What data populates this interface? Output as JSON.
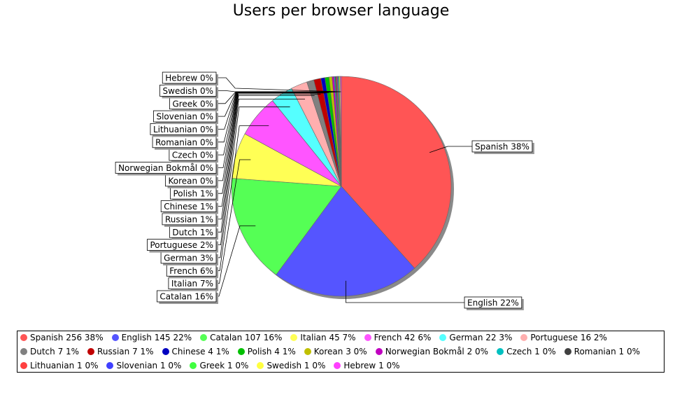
{
  "chart_data": {
    "type": "pie",
    "title": "Users per browser language",
    "slices": [
      {
        "name": "Spanish",
        "count": 256,
        "pct": 38,
        "color": "#ff5555",
        "label": "Spanish 38%",
        "legend": "Spanish 256 38%"
      },
      {
        "name": "English",
        "count": 145,
        "pct": 22,
        "color": "#5555ff",
        "label": "English 22%",
        "legend": "English 145 22%"
      },
      {
        "name": "Catalan",
        "count": 107,
        "pct": 16,
        "color": "#55ff55",
        "label": "Catalan 16%",
        "legend": "Catalan 107 16%"
      },
      {
        "name": "Italian",
        "count": 45,
        "pct": 7,
        "color": "#ffff55",
        "label": "Italian 7%",
        "legend": "Italian 45 7%"
      },
      {
        "name": "French",
        "count": 42,
        "pct": 6,
        "color": "#ff55ff",
        "label": "French 6%",
        "legend": "French 42 6%"
      },
      {
        "name": "German",
        "count": 22,
        "pct": 3,
        "color": "#55ffff",
        "label": "German 3%",
        "legend": "German 22 3%"
      },
      {
        "name": "Portuguese",
        "count": 16,
        "pct": 2,
        "color": "#ffafaf",
        "label": "Portuguese 2%",
        "legend": "Portuguese 16 2%"
      },
      {
        "name": "Dutch",
        "count": 7,
        "pct": 1,
        "color": "#808080",
        "label": "Dutch 1%",
        "legend": "Dutch 7 1%"
      },
      {
        "name": "Russian",
        "count": 7,
        "pct": 1,
        "color": "#c00000",
        "label": "Russian 1%",
        "legend": "Russian 7 1%"
      },
      {
        "name": "Chinese",
        "count": 4,
        "pct": 1,
        "color": "#0000c0",
        "label": "Chinese 1%",
        "legend": "Chinese 4 1%"
      },
      {
        "name": "Polish",
        "count": 4,
        "pct": 1,
        "color": "#00c000",
        "label": "Polish 1%",
        "legend": "Polish 4 1%"
      },
      {
        "name": "Korean",
        "count": 3,
        "pct": 0,
        "color": "#c0c000",
        "label": "Korean 0%",
        "legend": "Korean 3 0%"
      },
      {
        "name": "Norwegian Bokmål",
        "count": 2,
        "pct": 0,
        "color": "#c000c0",
        "label": "Norwegian Bokmål 0%",
        "legend": "Norwegian Bokmål 2 0%"
      },
      {
        "name": "Czech",
        "count": 1,
        "pct": 0,
        "color": "#00c0c0",
        "label": "Czech 0%",
        "legend": "Czech 1 0%"
      },
      {
        "name": "Romanian",
        "count": 1,
        "pct": 0,
        "color": "#404040",
        "label": "Romanian 0%",
        "legend": "Romanian 1 0%"
      },
      {
        "name": "Lithuanian",
        "count": 1,
        "pct": 0,
        "color": "#ff4040",
        "label": "Lithuanian 0%",
        "legend": "Lithuanian 1 0%"
      },
      {
        "name": "Slovenian",
        "count": 1,
        "pct": 0,
        "color": "#4040ff",
        "label": "Slovenian 0%",
        "legend": "Slovenian 1 0%"
      },
      {
        "name": "Greek",
        "count": 1,
        "pct": 0,
        "color": "#40ff40",
        "label": "Greek 0%",
        "legend": "Greek 1 0%"
      },
      {
        "name": "Swedish",
        "count": 1,
        "pct": 0,
        "color": "#ffff40",
        "label": "Swedish 0%",
        "legend": "Swedish 1 0%"
      },
      {
        "name": "Hebrew",
        "count": 1,
        "pct": 0,
        "color": "#ff40ff",
        "label": "Hebrew 0%",
        "legend": "Hebrew 1 0%"
      }
    ],
    "legend_placement": "bottom"
  }
}
